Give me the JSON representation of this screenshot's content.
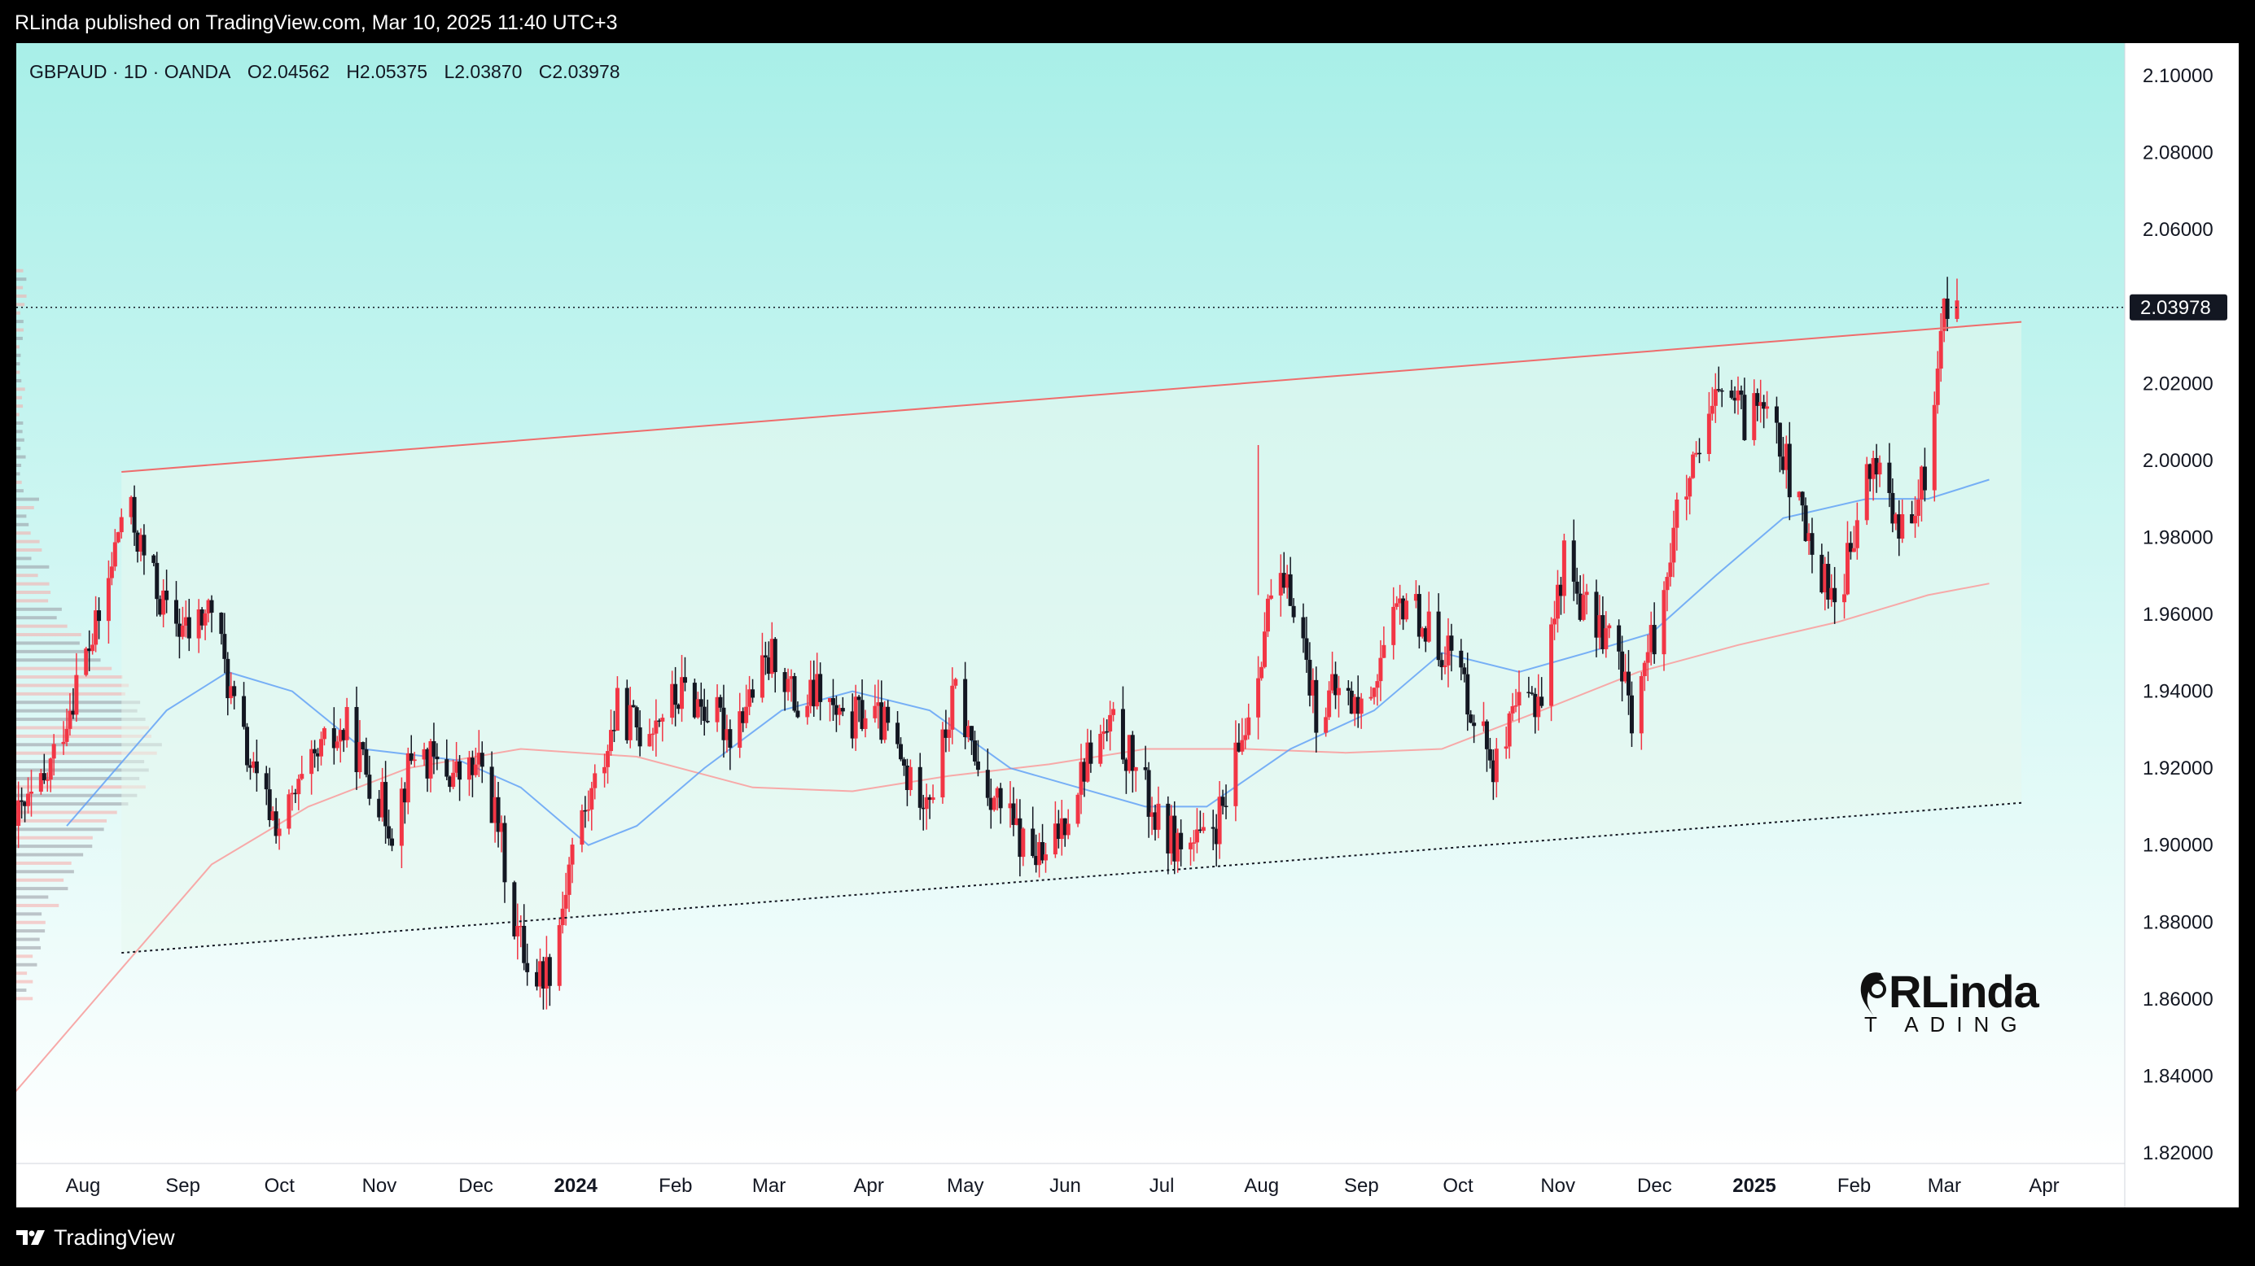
{
  "header": {
    "published": "RLinda published on TradingView.com, Mar 10, 2025 11:40 UTC+3"
  },
  "ohlc": {
    "symbol_line": "GBPAUD · 1D · OANDA",
    "open": "O2.04562",
    "high": "H2.05375",
    "low": "L2.03870",
    "close": "C2.03978"
  },
  "footer": {
    "brand": "TradingView"
  },
  "watermark": {
    "main": "RLinda",
    "sub": "T ADING"
  },
  "colors": {
    "up": "#f23645",
    "down": "#131722",
    "ma_fast": "#5b9cf6",
    "ma_slow": "#f7a9a8",
    "channel_upper": "#ef6c6c",
    "bg_top": "#a8efe8",
    "bg_bottom": "#ffffff"
  },
  "chart_data": {
    "type": "candlestick",
    "symbol": "GBPAUD",
    "timeframe": "1D",
    "exchange": "OANDA",
    "last_price": "2.03978",
    "ylim": [
      1.81,
      2.11
    ],
    "yticks": [
      "2.10000",
      "2.08000",
      "2.06000",
      "2.04000",
      "2.02000",
      "2.00000",
      "1.98000",
      "1.96000",
      "1.94000",
      "1.92000",
      "1.90000",
      "1.88000",
      "1.86000",
      "1.84000",
      "1.82000"
    ],
    "xticks": [
      {
        "label": "Aug",
        "date": "2023-08-01",
        "bold": false
      },
      {
        "label": "Sep",
        "date": "2023-09-01",
        "bold": false
      },
      {
        "label": "Oct",
        "date": "2023-10-01",
        "bold": false
      },
      {
        "label": "Nov",
        "date": "2023-11-01",
        "bold": false
      },
      {
        "label": "Dec",
        "date": "2023-12-01",
        "bold": false
      },
      {
        "label": "2024",
        "date": "2024-01-01",
        "bold": true
      },
      {
        "label": "Feb",
        "date": "2024-02-01",
        "bold": false
      },
      {
        "label": "Mar",
        "date": "2024-03-01",
        "bold": false
      },
      {
        "label": "Apr",
        "date": "2024-04-01",
        "bold": false
      },
      {
        "label": "May",
        "date": "2024-05-01",
        "bold": false
      },
      {
        "label": "Jun",
        "date": "2024-06-01",
        "bold": false
      },
      {
        "label": "Jul",
        "date": "2024-07-01",
        "bold": false
      },
      {
        "label": "Aug",
        "date": "2024-08-01",
        "bold": false
      },
      {
        "label": "Sep",
        "date": "2024-09-01",
        "bold": false
      },
      {
        "label": "Oct",
        "date": "2024-10-01",
        "bold": false
      },
      {
        "label": "Nov",
        "date": "2024-11-01",
        "bold": false
      },
      {
        "label": "Dec",
        "date": "2024-12-01",
        "bold": false
      },
      {
        "label": "2025",
        "date": "2025-01-01",
        "bold": true
      },
      {
        "label": "Feb",
        "date": "2025-02-01",
        "bold": false
      },
      {
        "label": "Mar",
        "date": "2025-03-01",
        "bold": false
      },
      {
        "label": "Apr",
        "date": "2025-04-01",
        "bold": false
      }
    ],
    "price_path": [
      [
        "2023-07-15",
        1.905
      ],
      [
        "2023-07-25",
        1.915
      ],
      [
        "2023-08-05",
        1.945
      ],
      [
        "2023-08-12",
        1.96
      ],
      [
        "2023-08-19",
        1.99
      ],
      [
        "2023-08-25",
        1.975
      ],
      [
        "2023-09-01",
        1.96
      ],
      [
        "2023-09-08",
        1.955
      ],
      [
        "2023-09-15",
        1.962
      ],
      [
        "2023-09-22",
        1.935
      ],
      [
        "2023-09-29",
        1.915
      ],
      [
        "2023-10-06",
        1.905
      ],
      [
        "2023-10-13",
        1.915
      ],
      [
        "2023-10-20",
        1.925
      ],
      [
        "2023-10-27",
        1.93
      ],
      [
        "2023-11-03",
        1.918
      ],
      [
        "2023-11-10",
        1.905
      ],
      [
        "2023-11-17",
        1.925
      ],
      [
        "2023-11-24",
        1.92
      ],
      [
        "2023-12-01",
        1.918
      ],
      [
        "2023-12-08",
        1.92
      ],
      [
        "2023-12-13",
        1.905
      ],
      [
        "2023-12-18",
        1.88
      ],
      [
        "2023-12-24",
        1.865
      ],
      [
        "2023-12-30",
        1.87
      ],
      [
        "2024-01-05",
        1.9
      ],
      [
        "2024-01-12",
        1.915
      ],
      [
        "2024-01-19",
        1.935
      ],
      [
        "2024-01-26",
        1.93
      ],
      [
        "2024-02-02",
        1.935
      ],
      [
        "2024-02-09",
        1.94
      ],
      [
        "2024-02-16",
        1.935
      ],
      [
        "2024-02-23",
        1.93
      ],
      [
        "2024-03-01",
        1.94
      ],
      [
        "2024-03-08",
        1.95
      ],
      [
        "2024-03-15",
        1.935
      ],
      [
        "2024-03-22",
        1.94
      ],
      [
        "2024-03-29",
        1.93
      ],
      [
        "2024-04-05",
        1.935
      ],
      [
        "2024-04-12",
        1.93
      ],
      [
        "2024-04-19",
        1.915
      ],
      [
        "2024-04-26",
        1.915
      ],
      [
        "2024-05-03",
        1.94
      ],
      [
        "2024-05-10",
        1.92
      ],
      [
        "2024-05-17",
        1.91
      ],
      [
        "2024-05-24",
        1.9
      ],
      [
        "2024-05-31",
        1.895
      ],
      [
        "2024-06-07",
        1.91
      ],
      [
        "2024-06-14",
        1.925
      ],
      [
        "2024-06-21",
        1.93
      ],
      [
        "2024-06-28",
        1.92
      ],
      [
        "2024-07-05",
        1.905
      ],
      [
        "2024-07-12",
        1.9
      ],
      [
        "2024-07-19",
        1.9
      ],
      [
        "2024-07-26",
        1.91
      ],
      [
        "2024-08-02",
        1.935
      ],
      [
        "2024-08-09",
        1.965
      ],
      [
        "2024-08-16",
        1.965
      ],
      [
        "2024-08-23",
        1.935
      ],
      [
        "2024-08-30",
        1.94
      ],
      [
        "2024-09-06",
        1.935
      ],
      [
        "2024-09-13",
        1.95
      ],
      [
        "2024-09-20",
        1.965
      ],
      [
        "2024-09-27",
        1.955
      ],
      [
        "2024-10-04",
        1.95
      ],
      [
        "2024-10-11",
        1.935
      ],
      [
        "2024-10-18",
        1.92
      ],
      [
        "2024-10-25",
        1.935
      ],
      [
        "2024-11-01",
        1.94
      ],
      [
        "2024-11-08",
        1.975
      ],
      [
        "2024-11-15",
        1.96
      ],
      [
        "2024-11-22",
        1.955
      ],
      [
        "2024-11-29",
        1.935
      ],
      [
        "2024-12-06",
        1.955
      ],
      [
        "2024-12-13",
        1.985
      ],
      [
        "2024-12-20",
        2.0
      ],
      [
        "2024-12-27",
        2.02
      ],
      [
        "2025-01-03",
        2.01
      ],
      [
        "2025-01-10",
        2.02
      ],
      [
        "2025-01-17",
        1.995
      ],
      [
        "2025-01-24",
        1.975
      ],
      [
        "2025-01-31",
        1.965
      ],
      [
        "2025-02-05",
        1.975
      ],
      [
        "2025-02-10",
        1.995
      ],
      [
        "2025-02-14",
        2.0
      ],
      [
        "2025-02-20",
        1.98
      ],
      [
        "2025-02-25",
        1.985
      ],
      [
        "2025-03-02",
        2.005
      ],
      [
        "2025-03-05",
        2.035
      ],
      [
        "2025-03-08",
        2.045
      ],
      [
        "2025-03-10",
        2.03978
      ]
    ],
    "ma_fast": [
      [
        "2023-08-01",
        1.905
      ],
      [
        "2023-09-01",
        1.935
      ],
      [
        "2023-09-20",
        1.945
      ],
      [
        "2023-10-10",
        1.94
      ],
      [
        "2023-11-01",
        1.925
      ],
      [
        "2023-12-01",
        1.922
      ],
      [
        "2023-12-20",
        1.915
      ],
      [
        "2024-01-10",
        1.9
      ],
      [
        "2024-01-25",
        1.905
      ],
      [
        "2024-02-15",
        1.92
      ],
      [
        "2024-03-10",
        1.935
      ],
      [
        "2024-04-01",
        1.94
      ],
      [
        "2024-04-25",
        1.935
      ],
      [
        "2024-05-20",
        1.92
      ],
      [
        "2024-06-10",
        1.915
      ],
      [
        "2024-07-01",
        1.91
      ],
      [
        "2024-07-20",
        1.91
      ],
      [
        "2024-08-15",
        1.925
      ],
      [
        "2024-09-10",
        1.935
      ],
      [
        "2024-10-01",
        1.95
      ],
      [
        "2024-10-25",
        1.945
      ],
      [
        "2024-11-15",
        1.95
      ],
      [
        "2024-12-05",
        1.955
      ],
      [
        "2024-12-25",
        1.97
      ],
      [
        "2025-01-15",
        1.985
      ],
      [
        "2025-02-10",
        1.99
      ],
      [
        "2025-03-01",
        1.99
      ],
      [
        "2025-03-20",
        1.995
      ]
    ],
    "ma_slow": [
      [
        "2023-07-10",
        1.83
      ],
      [
        "2023-08-15",
        1.865
      ],
      [
        "2023-09-15",
        1.895
      ],
      [
        "2023-10-15",
        1.91
      ],
      [
        "2023-11-15",
        1.92
      ],
      [
        "2023-12-20",
        1.925
      ],
      [
        "2024-01-25",
        1.923
      ],
      [
        "2024-03-01",
        1.915
      ],
      [
        "2024-04-01",
        1.914
      ],
      [
        "2024-05-01",
        1.918
      ],
      [
        "2024-06-01",
        1.921
      ],
      [
        "2024-07-01",
        1.925
      ],
      [
        "2024-08-01",
        1.925
      ],
      [
        "2024-09-01",
        1.924
      ],
      [
        "2024-10-01",
        1.925
      ],
      [
        "2024-11-01",
        1.935
      ],
      [
        "2024-12-01",
        1.945
      ],
      [
        "2025-01-01",
        1.952
      ],
      [
        "2025-02-01",
        1.958
      ],
      [
        "2025-03-01",
        1.965
      ],
      [
        "2025-03-20",
        1.968
      ]
    ],
    "channel_upper": {
      "from": [
        "2023-08-18",
        1.997
      ],
      "to": [
        "2025-03-30",
        2.036
      ]
    },
    "channel_lower": {
      "from": [
        "2023-08-18",
        1.872
      ],
      "to": [
        "2025-03-30",
        1.911
      ]
    }
  }
}
